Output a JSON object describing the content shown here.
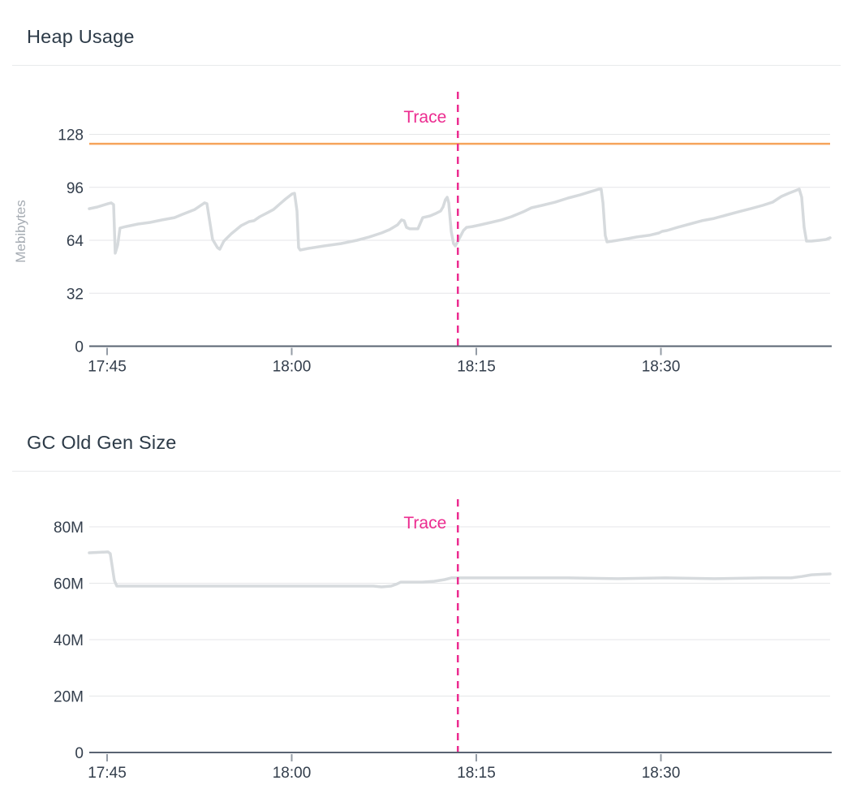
{
  "accent_colors": {
    "trace_pink": "#ec2c90",
    "max_line_orange": "#f6a45b",
    "series_gray": "#d6dadd",
    "title_text": "#2c3a47"
  },
  "chart_data": [
    {
      "type": "line",
      "title": "Heap Usage",
      "ylabel": "Mebibytes",
      "x_unit": "minutes_since_17:45",
      "ylim": [
        0,
        145
      ],
      "xlim_minutes": [
        -1.45,
        58.9
      ],
      "grid": "horizontal",
      "y_ticks": [
        {
          "label": "0",
          "value": 0
        },
        {
          "label": "32",
          "value": 32
        },
        {
          "label": "64",
          "value": 64
        },
        {
          "label": "96",
          "value": 96
        },
        {
          "label": "128",
          "value": 128
        }
      ],
      "x_ticks": [
        {
          "label": "17:45",
          "minute": 0
        },
        {
          "label": "18:00",
          "minute": 15
        },
        {
          "label": "18:15",
          "minute": 30
        },
        {
          "label": "18:30",
          "minute": 45
        }
      ],
      "trace_line": {
        "label": "Trace",
        "x_minute": 28.5,
        "color": "#ec2c90",
        "style": "dashed"
      },
      "max_line": {
        "value": 122.3,
        "color": "#f6a45b"
      },
      "series": [
        {
          "name": "heap-usage",
          "color": "#d6dadd",
          "points": [
            [
              -1.45,
              83.1
            ],
            [
              -0.79,
              84.1
            ],
            [
              0.07,
              86.1
            ],
            [
              0.33,
              86.6
            ],
            [
              0.53,
              85.6
            ],
            [
              0.66,
              56.2
            ],
            [
              0.86,
              61.1
            ],
            [
              1.05,
              71.4
            ],
            [
              1.52,
              72.3
            ],
            [
              2.51,
              73.8
            ],
            [
              3.49,
              74.8
            ],
            [
              4.48,
              76.3
            ],
            [
              5.47,
              77.7
            ],
            [
              6.13,
              79.7
            ],
            [
              7.12,
              82.6
            ],
            [
              7.91,
              86.6
            ],
            [
              8.11,
              86.1
            ],
            [
              8.57,
              64.5
            ],
            [
              8.97,
              59.6
            ],
            [
              9.16,
              58.6
            ],
            [
              9.49,
              63.5
            ],
            [
              10.09,
              67.9
            ],
            [
              10.88,
              72.8
            ],
            [
              11.54,
              75.3
            ],
            [
              11.93,
              75.8
            ],
            [
              12.4,
              78.2
            ],
            [
              13.05,
              80.7
            ],
            [
              13.52,
              82.6
            ],
            [
              13.98,
              85.6
            ],
            [
              14.51,
              89
            ],
            [
              15.03,
              92
            ],
            [
              15.23,
              92.4
            ],
            [
              15.43,
              81.7
            ],
            [
              15.56,
              59.6
            ],
            [
              15.69,
              58.1
            ],
            [
              16.35,
              59.1
            ],
            [
              17.67,
              60.6
            ],
            [
              18.99,
              62
            ],
            [
              20.31,
              64
            ],
            [
              21.3,
              66
            ],
            [
              22.29,
              68.4
            ],
            [
              22.95,
              70.4
            ],
            [
              23.6,
              73.3
            ],
            [
              23.93,
              76.3
            ],
            [
              24.13,
              75.8
            ],
            [
              24.33,
              71.8
            ],
            [
              24.59,
              70.9
            ],
            [
              25.25,
              70.9
            ],
            [
              25.45,
              74.3
            ],
            [
              25.65,
              77.7
            ],
            [
              26.24,
              78.7
            ],
            [
              26.7,
              80.2
            ],
            [
              27.1,
              81.7
            ],
            [
              27.3,
              84.1
            ],
            [
              27.49,
              88.5
            ],
            [
              27.63,
              90
            ],
            [
              27.76,
              86.6
            ],
            [
              27.96,
              69.4
            ],
            [
              28.15,
              62
            ],
            [
              28.29,
              60.6
            ],
            [
              28.48,
              63
            ],
            [
              28.68,
              66
            ],
            [
              28.95,
              69.9
            ],
            [
              29.21,
              71.8
            ],
            [
              29.67,
              72.3
            ],
            [
              30.33,
              73.3
            ],
            [
              31.19,
              74.8
            ],
            [
              32.04,
              76.3
            ],
            [
              32.84,
              78.2
            ],
            [
              33.82,
              81.2
            ],
            [
              34.48,
              83.6
            ],
            [
              35.34,
              85.1
            ],
            [
              36.4,
              87
            ],
            [
              37.45,
              89.5
            ],
            [
              38.44,
              91.4
            ],
            [
              39.3,
              93.4
            ],
            [
              39.96,
              94.9
            ],
            [
              40.15,
              94.9
            ],
            [
              40.29,
              86.6
            ],
            [
              40.48,
              67
            ],
            [
              40.62,
              63
            ],
            [
              41.08,
              63.5
            ],
            [
              41.93,
              64.5
            ],
            [
              43.05,
              66
            ],
            [
              44.04,
              67
            ],
            [
              44.84,
              68.4
            ],
            [
              45.1,
              69.4
            ],
            [
              45.49,
              69.9
            ],
            [
              46.35,
              71.8
            ],
            [
              47.34,
              73.8
            ],
            [
              48.33,
              75.8
            ],
            [
              49.32,
              77.2
            ],
            [
              50.31,
              79.2
            ],
            [
              51.3,
              81.2
            ],
            [
              52.29,
              83.1
            ],
            [
              53.27,
              85.1
            ],
            [
              54.07,
              87
            ],
            [
              54.59,
              89.5
            ],
            [
              54.79,
              90.5
            ],
            [
              55.38,
              92.4
            ],
            [
              55.91,
              93.9
            ],
            [
              56.24,
              94.9
            ],
            [
              56.44,
              90
            ],
            [
              56.64,
              71.8
            ],
            [
              56.83,
              63.5
            ],
            [
              57.23,
              63.5
            ],
            [
              57.89,
              64
            ],
            [
              58.42,
              64.5
            ],
            [
              58.75,
              65.5
            ]
          ]
        }
      ]
    },
    {
      "type": "line",
      "title": "GC Old Gen Size",
      "ylabel": "",
      "x_unit": "minutes_since_17:45",
      "ylim": [
        0,
        93
      ],
      "xlim_minutes": [
        -1.45,
        58.9
      ],
      "grid": "horizontal",
      "y_ticks": [
        {
          "label": "0",
          "value": 0
        },
        {
          "label": "20M",
          "value": 20
        },
        {
          "label": "40M",
          "value": 40
        },
        {
          "label": "60M",
          "value": 60
        },
        {
          "label": "80M",
          "value": 80
        }
      ],
      "x_ticks": [
        {
          "label": "17:45",
          "minute": 0
        },
        {
          "label": "18:00",
          "minute": 15
        },
        {
          "label": "18:15",
          "minute": 30
        },
        {
          "label": "18:30",
          "minute": 45
        }
      ],
      "trace_line": {
        "label": "Trace",
        "x_minute": 28.5,
        "color": "#ec2c90",
        "style": "dashed"
      },
      "max_line": null,
      "series": [
        {
          "name": "gc-old-gen-size",
          "color": "#d6dadd",
          "points": [
            [
              -1.45,
              70.8
            ],
            [
              0.07,
              71.1
            ],
            [
              0.26,
              70.5
            ],
            [
              0.59,
              61
            ],
            [
              0.79,
              59
            ],
            [
              1.85,
              59
            ],
            [
              11.08,
              59
            ],
            [
              21.63,
              59
            ],
            [
              22.29,
              58.7
            ],
            [
              23.08,
              59
            ],
            [
              23.47,
              59.6
            ],
            [
              23.87,
              60.4
            ],
            [
              25.58,
              60.4
            ],
            [
              26.57,
              60.7
            ],
            [
              27.43,
              61.3
            ],
            [
              27.96,
              61.9
            ],
            [
              30.86,
              61.9
            ],
            [
              37.45,
              61.9
            ],
            [
              41.41,
              61.6
            ],
            [
              45.36,
              61.9
            ],
            [
              49.32,
              61.6
            ],
            [
              53.27,
              61.9
            ],
            [
              55.58,
              61.9
            ],
            [
              56.44,
              62.4
            ],
            [
              57.23,
              63
            ],
            [
              58.75,
              63.3
            ]
          ]
        }
      ]
    }
  ]
}
